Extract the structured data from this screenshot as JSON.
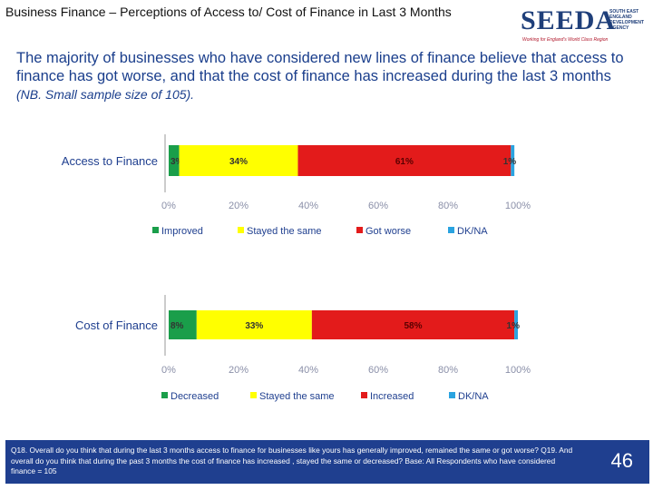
{
  "slide": {
    "title": "Business Finance – Perceptions of Access to/ Cost of Finance in Last 3 Months",
    "subtitle": "The majority of businesses who have considered new lines of finance believe that access to finance has got worse, and that the cost of finance has increased during the last 3 months",
    "note": "(NB. Small sample size of 105).",
    "footnote": "Q18. Overall do you think that during the last 3 months access to finance for businesses like yours has generally improved, remained the same or got worse? Q19. And overall do you think that during the past 3 months the cost of finance has increased , stayed the same or decreased? Base: All Respondents who have considered finance = 105",
    "page_number": "46"
  },
  "logo": {
    "name": "SEEDA",
    "sub": "SOUTH EAST ENGLAND DEVELOPMENT AGENCY",
    "tagline": "Working for England's World Class Region"
  },
  "colors": {
    "green": "#1a9e4a",
    "yellow": "#ffff00",
    "red": "#e31b1b",
    "blue": "#2aa3e0",
    "brand": "#1f3f8f"
  },
  "chart_data": [
    {
      "type": "bar",
      "orientation": "horizontal",
      "stacked": true,
      "categories": [
        "Access to Finance"
      ],
      "series": [
        {
          "name": "Improved",
          "values": [
            3
          ],
          "label": "3%"
        },
        {
          "name": "Stayed the same",
          "values": [
            34
          ],
          "label": "34%"
        },
        {
          "name": "Got worse",
          "values": [
            61
          ],
          "label": "61%"
        },
        {
          "name": "DK/NA",
          "values": [
            1
          ],
          "label": "1%"
        }
      ],
      "xlim": [
        0,
        100
      ],
      "xticks": [
        "0%",
        "20%",
        "40%",
        "60%",
        "80%",
        "100%"
      ],
      "legend": "bottom"
    },
    {
      "type": "bar",
      "orientation": "horizontal",
      "stacked": true,
      "categories": [
        "Cost of Finance"
      ],
      "series": [
        {
          "name": "Decreased",
          "values": [
            8
          ],
          "label": "8%"
        },
        {
          "name": "Stayed the same",
          "values": [
            33
          ],
          "label": "33%"
        },
        {
          "name": "Increased",
          "values": [
            58
          ],
          "label": "58%"
        },
        {
          "name": "DK/NA",
          "values": [
            1
          ],
          "label": "1%"
        }
      ],
      "xlim": [
        0,
        100
      ],
      "xticks": [
        "0%",
        "20%",
        "40%",
        "60%",
        "80%",
        "100%"
      ],
      "legend": "bottom"
    }
  ]
}
